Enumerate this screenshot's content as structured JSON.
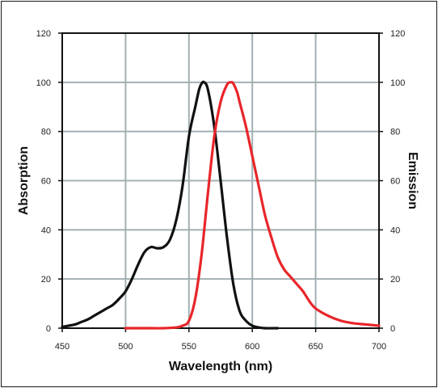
{
  "chart_data": {
    "type": "line",
    "title": "",
    "xlabel": "Wavelength (nm)",
    "ylabel_left": "Absorption",
    "ylabel_right": "Emission",
    "xlim": [
      450,
      700
    ],
    "ylim": [
      0,
      120
    ],
    "x_ticks": [
      "450",
      "500",
      "550",
      "600",
      "650",
      "700"
    ],
    "y_ticks": [
      "0",
      "20",
      "40",
      "60",
      "80",
      "100",
      "120"
    ],
    "grid": true,
    "colors": {
      "absorption": "#111111",
      "emission": "#e8262a",
      "grid": "#a3b0b3",
      "axis": "#111111"
    },
    "series": [
      {
        "name": "Absorption",
        "axis": "left",
        "x": [
          450,
          455,
          460,
          465,
          470,
          475,
          480,
          485,
          490,
          495,
          500,
          505,
          510,
          515,
          520,
          525,
          530,
          535,
          540,
          545,
          550,
          555,
          558,
          560,
          562,
          565,
          570,
          575,
          580,
          585,
          590,
          595,
          600,
          605,
          610,
          620
        ],
        "y": [
          0.5,
          1,
          1.5,
          2.5,
          3.5,
          5,
          6.5,
          8,
          9.5,
          12,
          15,
          20,
          26,
          31,
          33,
          32.5,
          33,
          36,
          44,
          58,
          78,
          90,
          97,
          99.5,
          100,
          97,
          82,
          60,
          37,
          18,
          7,
          3,
          1,
          0.3,
          0,
          0
        ]
      },
      {
        "name": "Emission",
        "axis": "right",
        "x": [
          500,
          520,
          530,
          540,
          545,
          550,
          555,
          560,
          565,
          570,
          575,
          580,
          583,
          585,
          588,
          590,
          595,
          600,
          605,
          610,
          615,
          620,
          625,
          630,
          635,
          640,
          645,
          650,
          660,
          670,
          680,
          690,
          700
        ],
        "y": [
          0,
          0,
          0,
          0.3,
          1,
          3,
          12,
          30,
          55,
          78,
          92,
          99,
          100,
          99.5,
          96,
          92,
          82,
          70,
          58,
          46,
          37,
          29,
          24,
          21,
          18,
          15,
          11,
          8,
          5,
          3,
          2,
          1.5,
          1
        ]
      }
    ]
  }
}
